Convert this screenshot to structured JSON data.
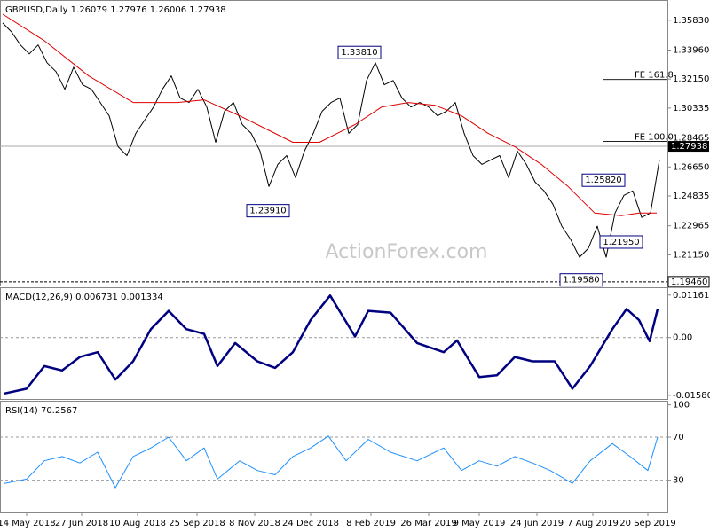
{
  "chart_data": [
    {
      "type": "line",
      "title": "GBPUSD,Daily  1.26079 1.27976 1.26006 1.27938",
      "watermark": "ActionForex.com",
      "xlim": [
        -0.3,
        74.9
      ],
      "ylim": [
        1.1923,
        1.3704
      ],
      "yticks": [
        {
          "value": 1.3583,
          "label": "1.35830"
        },
        {
          "value": 1.3396,
          "label": "1.33960"
        },
        {
          "value": 1.3215,
          "label": "1.32150"
        },
        {
          "value": 1.30335,
          "label": "1.30335"
        },
        {
          "value": 1.28465,
          "label": "1.28465"
        },
        {
          "value": 1.2665,
          "label": "1.26650"
        },
        {
          "value": 1.24835,
          "label": "1.24835"
        },
        {
          "value": 1.22965,
          "label": "1.22965"
        },
        {
          "value": 1.2115,
          "label": "1.21150"
        }
      ],
      "series": [
        {
          "color": "#000000",
          "values": [
            1.3566,
            1.351,
            1.3428,
            1.3372,
            1.3428,
            1.3317,
            1.3262,
            1.3151,
            1.3289,
            1.3179,
            1.3151,
            1.3068,
            1.2985,
            1.2792,
            1.2736,
            1.2875,
            1.2958,
            1.304,
            1.3151,
            1.3234,
            1.3096,
            1.3068,
            1.3151,
            1.304,
            1.2819,
            1.3013,
            1.3068,
            1.293,
            1.2875,
            1.2764,
            1.2543,
            1.2681,
            1.2736,
            1.2598,
            1.2764,
            1.2875,
            1.3013,
            1.3068,
            1.3096,
            1.2875,
            1.293,
            1.3206,
            1.3317,
            1.3179,
            1.3206,
            1.3096,
            1.304,
            1.3068,
            1.304,
            1.2985,
            1.3013,
            1.3068,
            1.2875,
            1.2736,
            1.2681,
            1.2709,
            1.2736,
            1.2598,
            1.2764,
            1.2681,
            1.257,
            1.2515,
            1.2432,
            1.2294,
            1.2211,
            1.21,
            1.2156,
            1.2294,
            1.21,
            1.2377,
            1.2487,
            1.2515,
            1.2349,
            1.2377,
            1.2709
          ]
        },
        {
          "color": "#e00000",
          "x": [
            0,
            4.7,
            9.7,
            14.7,
            19.7,
            22.7,
            26.7,
            29.7,
            32.7,
            35.7,
            37.7,
            39.7,
            42.7,
            45.7,
            48.7,
            51.7,
            54.7,
            57.7,
            60.7,
            63.7,
            66.7,
            69.7,
            71.7,
            73.7
          ],
          "values": [
            1.3621,
            1.3455,
            1.3234,
            1.3068,
            1.3068,
            1.3085,
            1.2985,
            1.2902,
            1.2819,
            1.2819,
            1.2875,
            1.293,
            1.304,
            1.3068,
            1.3051,
            1.2985,
            1.2875,
            1.2792,
            1.2681,
            1.2543,
            1.2377,
            1.236,
            1.2377,
            1.2377
          ]
        }
      ],
      "annotations": [
        {
          "text": "1.33810",
          "x": 40.2,
          "y": 1.3381
        },
        {
          "text": "1.23910",
          "x": 29.9,
          "y": 1.2391
        },
        {
          "text": "1.25820",
          "x": 67.7,
          "y": 1.2582
        },
        {
          "text": "1.21950",
          "x": 69.7,
          "y": 1.2195
        },
        {
          "text": "1.19580",
          "x": 65.2,
          "y": 1.1958
        }
      ],
      "levels": [
        {
          "text": "FE 161.8",
          "value": 1.3212
        },
        {
          "text": "FE 100.0",
          "value": 1.2825
        }
      ],
      "support": {
        "value": 1.1946,
        "label": "1.19460"
      },
      "last_price": 1.27938
    },
    {
      "type": "line",
      "title": "MACD(12,26,9) 0.006731 0.001334",
      "xlim": [
        -0.3,
        74.9
      ],
      "ylim": [
        -0.0168,
        0.0135
      ],
      "yticks": [
        0.011612,
        {
          "value": 0,
          "label": "0.00"
        },
        -0.015803
      ],
      "levels": [
        0
      ],
      "series": [
        {
          "color": "#000080",
          "x": [
            0.2,
            2.7,
            4.7,
            6.7,
            8.7,
            10.7,
            12.7,
            14.7,
            16.7,
            18.7,
            20.7,
            22.7,
            24.2,
            26.2,
            28.7,
            30.7,
            32.7,
            34.7,
            36.9,
            39.7,
            41.2,
            43.7,
            46.7,
            49.7,
            51.2,
            53.7,
            55.7,
            57.7,
            59.7,
            62.2,
            64.2,
            66.2,
            68.7,
            70.3,
            71.7,
            72.9,
            73.8
          ],
          "values": [
            -0.0153,
            -0.014,
            -0.0078,
            -0.009,
            -0.0053,
            -0.004,
            -0.0115,
            -0.0065,
            0.0023,
            0.0073,
            0.0023,
            0.001,
            -0.0078,
            -0.0015,
            -0.0065,
            -0.0083,
            -0.004,
            0.0048,
            0.0115,
            0.0003,
            0.0073,
            0.0068,
            -0.0015,
            -0.004,
            -0.0008,
            -0.0108,
            -0.0103,
            -0.0053,
            -0.0065,
            -0.0065,
            -0.014,
            -0.0078,
            0.0023,
            0.0078,
            0.0048,
            -0.001,
            0.0078
          ]
        }
      ]
    },
    {
      "type": "line",
      "title": "RSI(14) 70.2567",
      "xlim": [
        -0.3,
        74.9
      ],
      "ylim": [
        0,
        103
      ],
      "yticks": [
        100,
        70,
        30
      ],
      "levels": [
        70,
        30
      ],
      "series": [
        {
          "color": "#1e90ff",
          "x": [
            0.2,
            2.7,
            4.7,
            6.7,
            8.7,
            10.7,
            12.7,
            14.7,
            16.7,
            18.7,
            20.7,
            22.7,
            24.2,
            26.7,
            28.7,
            30.7,
            32.7,
            34.7,
            36.7,
            38.7,
            41.2,
            43.7,
            46.7,
            49.7,
            51.7,
            53.7,
            55.7,
            57.7,
            59.7,
            61.7,
            64.2,
            66.2,
            68.7,
            70.7,
            72.7,
            73.8
          ],
          "values": [
            27,
            31,
            48,
            52,
            46,
            56,
            23,
            52,
            60,
            70,
            48,
            60,
            31,
            48,
            39,
            35,
            52,
            60,
            71,
            48,
            68,
            56,
            48,
            60,
            39,
            48,
            43,
            52,
            46,
            39,
            27,
            48,
            64,
            52,
            39,
            70
          ]
        }
      ],
      "xticks": [
        {
          "value": 2.7,
          "label": "14 May 2018"
        },
        {
          "value": 8.9,
          "label": "27 Jun 2018"
        },
        {
          "value": 15.2,
          "label": "10 Aug 2018"
        },
        {
          "value": 21.9,
          "label": "25 Sep 2018"
        },
        {
          "value": 28.4,
          "label": "8 Nov 2018"
        },
        {
          "value": 34.7,
          "label": "24 Dec 2018"
        },
        {
          "value": 41.5,
          "label": "8 Feb 2019"
        },
        {
          "value": 48.0,
          "label": "26 Mar 2019"
        },
        {
          "value": 53.7,
          "label": "9 May 2019"
        },
        {
          "value": 60.2,
          "label": "24 Jun 2019"
        },
        {
          "value": 66.5,
          "label": "7 Aug 2019"
        },
        {
          "value": 72.7,
          "label": "20 Sep 2019"
        }
      ]
    }
  ]
}
